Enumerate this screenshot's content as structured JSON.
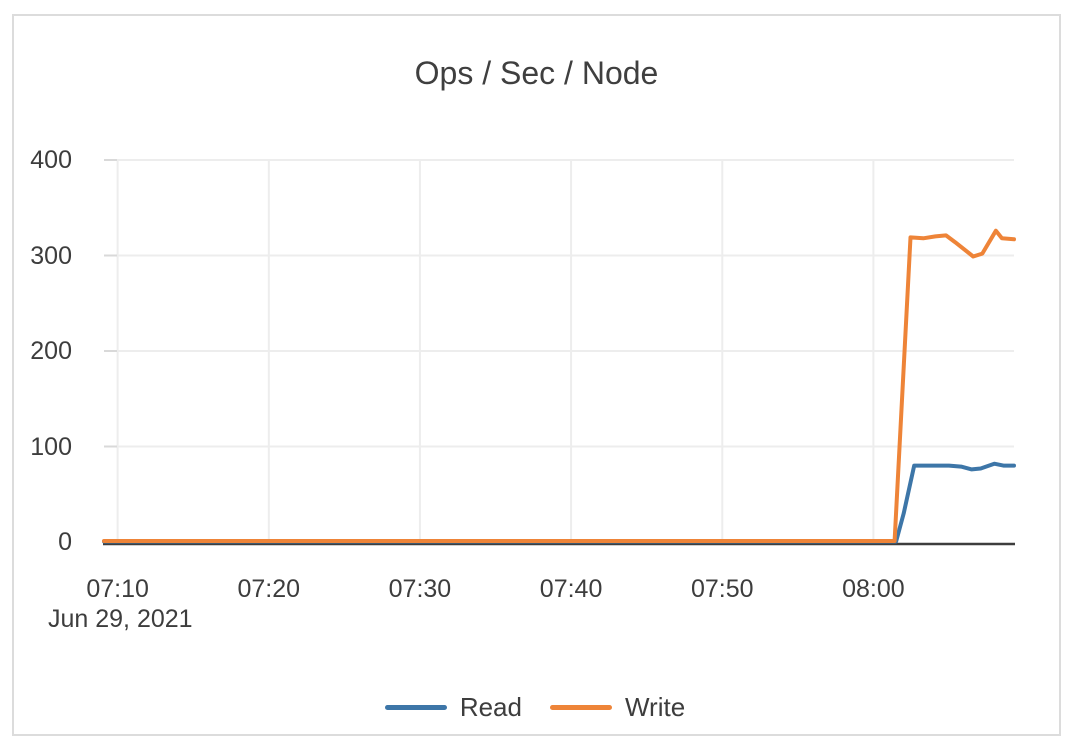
{
  "card": {
    "background": "#ffffff",
    "border_color": "#dcdcdc"
  },
  "colors": {
    "text": "#3d3d3d",
    "gridline": "#ededed",
    "tick_mark": "#d9d9d9",
    "axis_line": "#3d3d3d"
  },
  "chart_data": {
    "type": "line",
    "title": "Ops / Sec / Node",
    "grid": true,
    "legend_position": "bottom-center",
    "x_axis": {
      "date_label": "Jun 29, 2021",
      "tick_labels": [
        "07:10",
        "07:20",
        "07:30",
        "07:40",
        "07:50",
        "08:00"
      ],
      "tick_minutes_after_0700": [
        10,
        20,
        30,
        40,
        50,
        60
      ],
      "visible_range_minutes_after_0700": [
        9.1,
        69.3
      ]
    },
    "y_axis": {
      "tick_labels": [
        "0",
        "100",
        "200",
        "300",
        "400"
      ],
      "tick_values": [
        0,
        100,
        200,
        300,
        400
      ],
      "range": [
        0,
        400
      ]
    },
    "series": [
      {
        "name": "Read",
        "color": "#3d76a8",
        "points": [
          [
            9.1,
            0.5
          ],
          [
            30,
            0.5
          ],
          [
            50,
            0.5
          ],
          [
            61.5,
            0.5
          ],
          [
            62.0,
            30
          ],
          [
            62.7,
            80
          ],
          [
            64.0,
            80
          ],
          [
            65.0,
            80
          ],
          [
            65.8,
            79
          ],
          [
            66.5,
            76
          ],
          [
            67.1,
            77
          ],
          [
            68.0,
            82
          ],
          [
            68.6,
            80
          ],
          [
            69.3,
            80
          ]
        ]
      },
      {
        "name": "Write",
        "color": "#ee8438",
        "points": [
          [
            9.1,
            1
          ],
          [
            30,
            1
          ],
          [
            50,
            1
          ],
          [
            61.4,
            1
          ],
          [
            62.45,
            319
          ],
          [
            63.3,
            318
          ],
          [
            64.1,
            320
          ],
          [
            64.8,
            321
          ],
          [
            65.4,
            314
          ],
          [
            66.6,
            299
          ],
          [
            67.2,
            302
          ],
          [
            68.1,
            326
          ],
          [
            68.5,
            318
          ],
          [
            69.3,
            317
          ]
        ]
      }
    ]
  }
}
